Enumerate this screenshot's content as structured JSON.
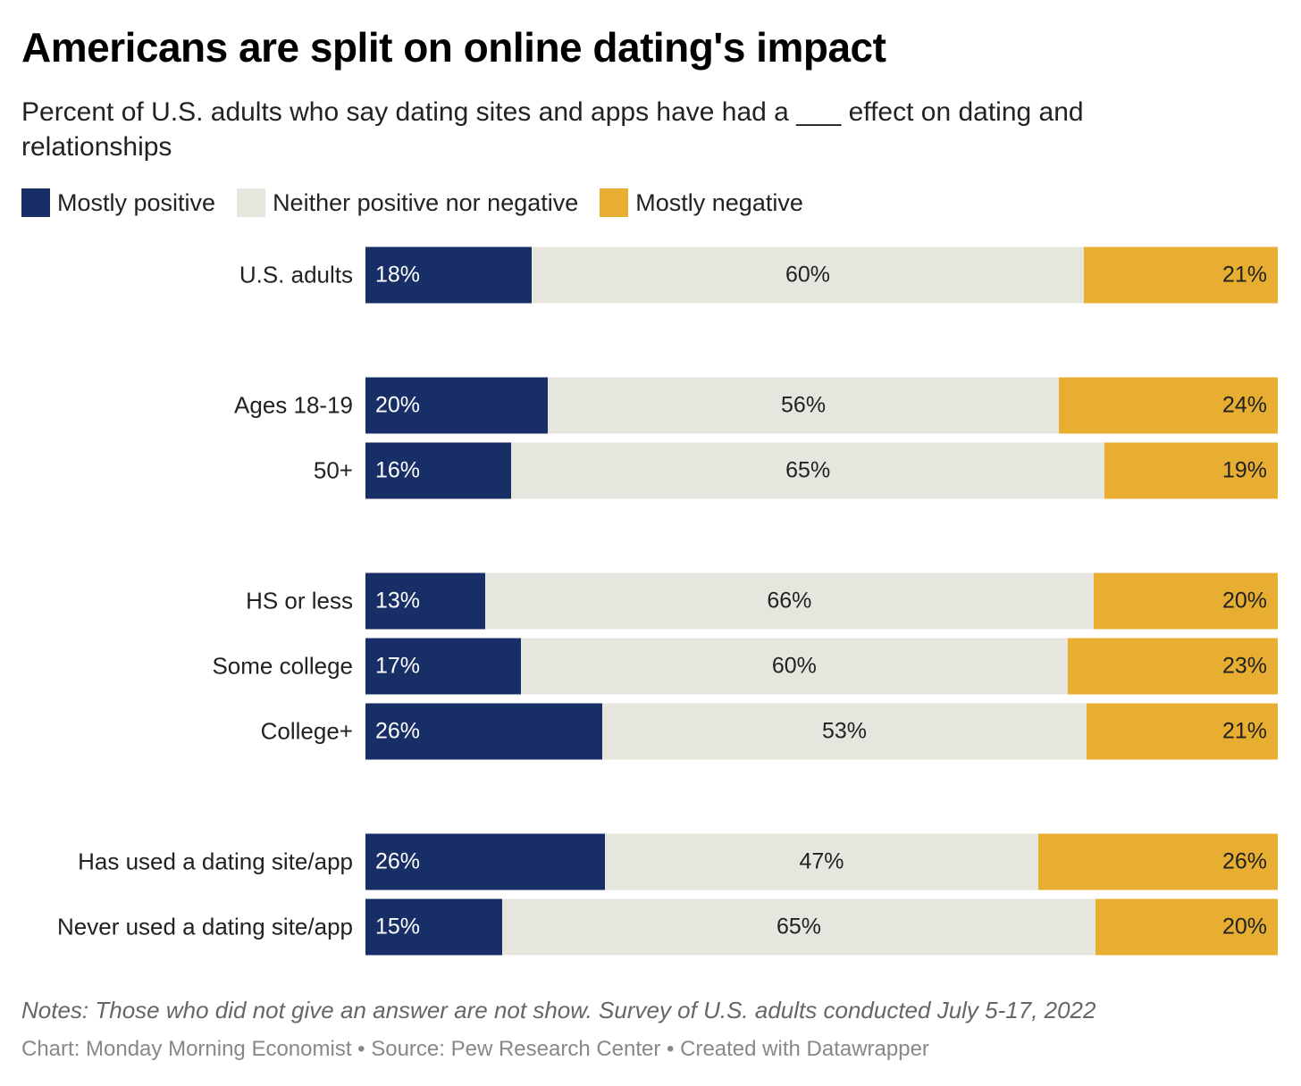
{
  "title": "Americans are split on online dating's impact",
  "subtitle": "Percent of U.S. adults who say dating sites and apps have had a ___ effect on dating and relationships",
  "notes": "Notes: Those who did not give an answer are not show. Survey of U.S. adults conducted July 5-17, 2022",
  "credit": "Chart: Monday Morning Economist • Source: Pew Research Center • Created with Datawrapper",
  "chart_data": {
    "type": "bar",
    "orientation": "horizontal-stacked",
    "title": "Americans are split on online dating's impact",
    "legend_placement": "top-left",
    "categories": [
      "U.S. adults",
      "Ages 18-19",
      "50+",
      "HS or less",
      "Some college",
      "College+",
      "Has used a dating site/app",
      "Never used a dating site/app"
    ],
    "groups": [
      [
        0
      ],
      [
        1,
        2
      ],
      [
        3,
        4,
        5
      ],
      [
        6,
        7
      ]
    ],
    "series": [
      {
        "name": "Mostly positive",
        "color": "#172f66",
        "text_color": "#ffffff",
        "align": "left",
        "values": [
          18,
          20,
          16,
          13,
          17,
          26,
          26,
          15
        ]
      },
      {
        "name": "Neither positive nor negative",
        "color": "#e6e6de",
        "text_color": "#222222",
        "align": "center",
        "values": [
          60,
          56,
          65,
          66,
          60,
          53,
          47,
          65
        ]
      },
      {
        "name": "Mostly negative",
        "color": "#e8ae31",
        "text_color": "#222222",
        "align": "right",
        "values": [
          21,
          24,
          19,
          20,
          23,
          21,
          26,
          20
        ]
      }
    ]
  }
}
